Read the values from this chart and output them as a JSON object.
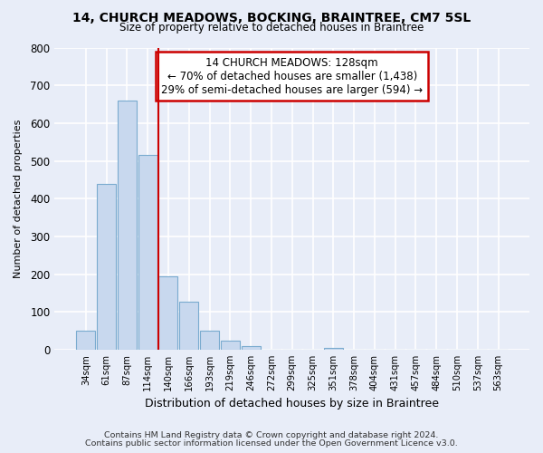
{
  "title1": "14, CHURCH MEADOWS, BOCKING, BRAINTREE, CM7 5SL",
  "title2": "Size of property relative to detached houses in Braintree",
  "xlabel": "Distribution of detached houses by size in Braintree",
  "ylabel": "Number of detached properties",
  "footnote1": "Contains HM Land Registry data © Crown copyright and database right 2024.",
  "footnote2": "Contains public sector information licensed under the Open Government Licence v3.0.",
  "bar_labels": [
    "34sqm",
    "61sqm",
    "87sqm",
    "114sqm",
    "140sqm",
    "166sqm",
    "193sqm",
    "219sqm",
    "246sqm",
    "272sqm",
    "299sqm",
    "325sqm",
    "351sqm",
    "378sqm",
    "404sqm",
    "431sqm",
    "457sqm",
    "484sqm",
    "510sqm",
    "537sqm",
    "563sqm"
  ],
  "bar_values": [
    50,
    440,
    660,
    515,
    193,
    128,
    50,
    25,
    10,
    0,
    0,
    0,
    5,
    0,
    0,
    0,
    0,
    0,
    0,
    0,
    0
  ],
  "bar_color": "#c8d8ee",
  "bar_edge_color": "#7aabcf",
  "vline_x": 3.5,
  "vline_color": "#cc0000",
  "annotation_line1": "14 CHURCH MEADOWS: 128sqm",
  "annotation_line2": "← 70% of detached houses are smaller (1,438)",
  "annotation_line3": "29% of semi-detached houses are larger (594) →",
  "annotation_box_color": "#ffffff",
  "annotation_box_edge": "#cc0000",
  "bg_color": "#e8edf8",
  "plot_bg_color": "#e8edf8",
  "grid_color": "#ffffff",
  "ylim": [
    0,
    800
  ],
  "yticks": [
    0,
    100,
    200,
    300,
    400,
    500,
    600,
    700,
    800
  ]
}
